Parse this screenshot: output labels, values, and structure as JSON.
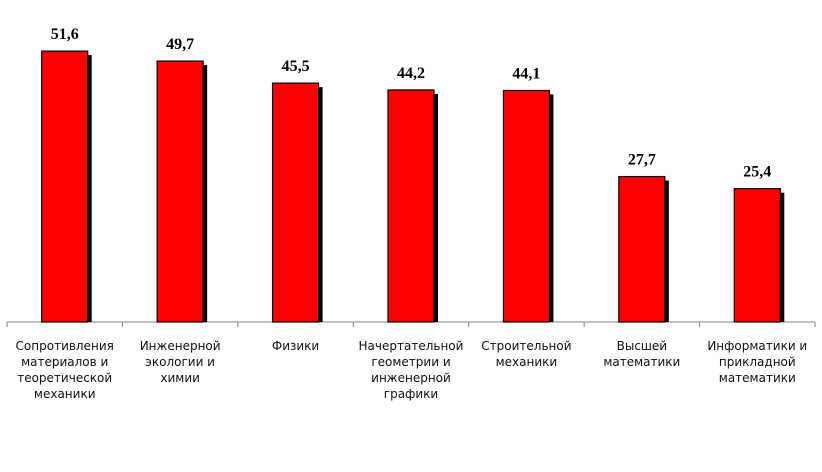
{
  "chart_data": {
    "type": "bar",
    "categories": [
      "Сопротивления материалов и теоретической механики",
      "Инженерной экологии и химии",
      "Физики",
      "Начертательной геометрии и инженерной графики",
      "Строительной механики",
      "Высшей математики",
      "Информатики и прикладной математики"
    ],
    "values": [
      51.6,
      49.7,
      45.5,
      44.2,
      44.1,
      27.7,
      25.4
    ],
    "value_labels": [
      "51,6",
      "49,7",
      "45,5",
      "44,2",
      "44,1",
      "27,7",
      "25,4"
    ],
    "color": "#ff0000"
  }
}
